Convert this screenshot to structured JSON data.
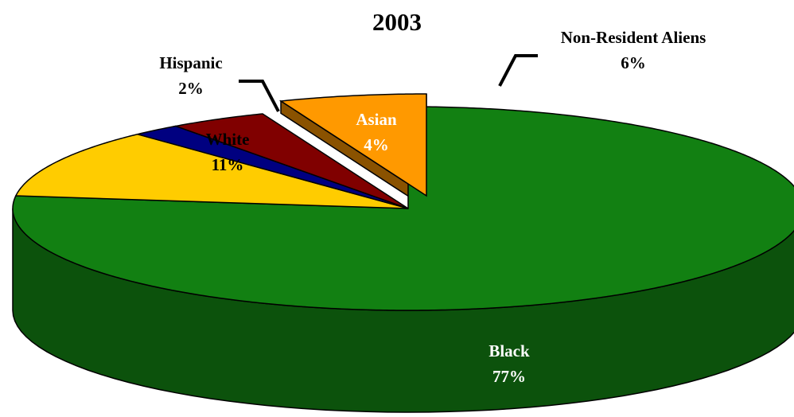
{
  "chart_data": {
    "type": "pie",
    "style": "3d-exploded",
    "title": "2003",
    "slices": [
      {
        "label": "Black",
        "percent_label": "77%",
        "value": 77,
        "color": "#128012",
        "side_color": "#0c520c",
        "label_color": "#ffffff"
      },
      {
        "label": "White",
        "percent_label": "11%",
        "value": 11,
        "color": "#ffcc00",
        "side_color": "#b38f00",
        "label_color": "#000000"
      },
      {
        "label": "Hispanic",
        "percent_label": "2%",
        "value": 2,
        "color": "#000080",
        "side_color": "#00004d",
        "label_color": "#000000"
      },
      {
        "label": "Asian",
        "percent_label": "4%",
        "value": 4,
        "color": "#800000",
        "side_color": "#4d0000",
        "label_color": "#ffffff"
      },
      {
        "label": "Non-Resident Aliens",
        "percent_label": "6%",
        "value": 6,
        "color": "#ff9900",
        "side_color": "#8a5200",
        "label_color": "#000000",
        "exploded": true
      }
    ],
    "legend": "none",
    "data_labels": "category-and-percent"
  }
}
